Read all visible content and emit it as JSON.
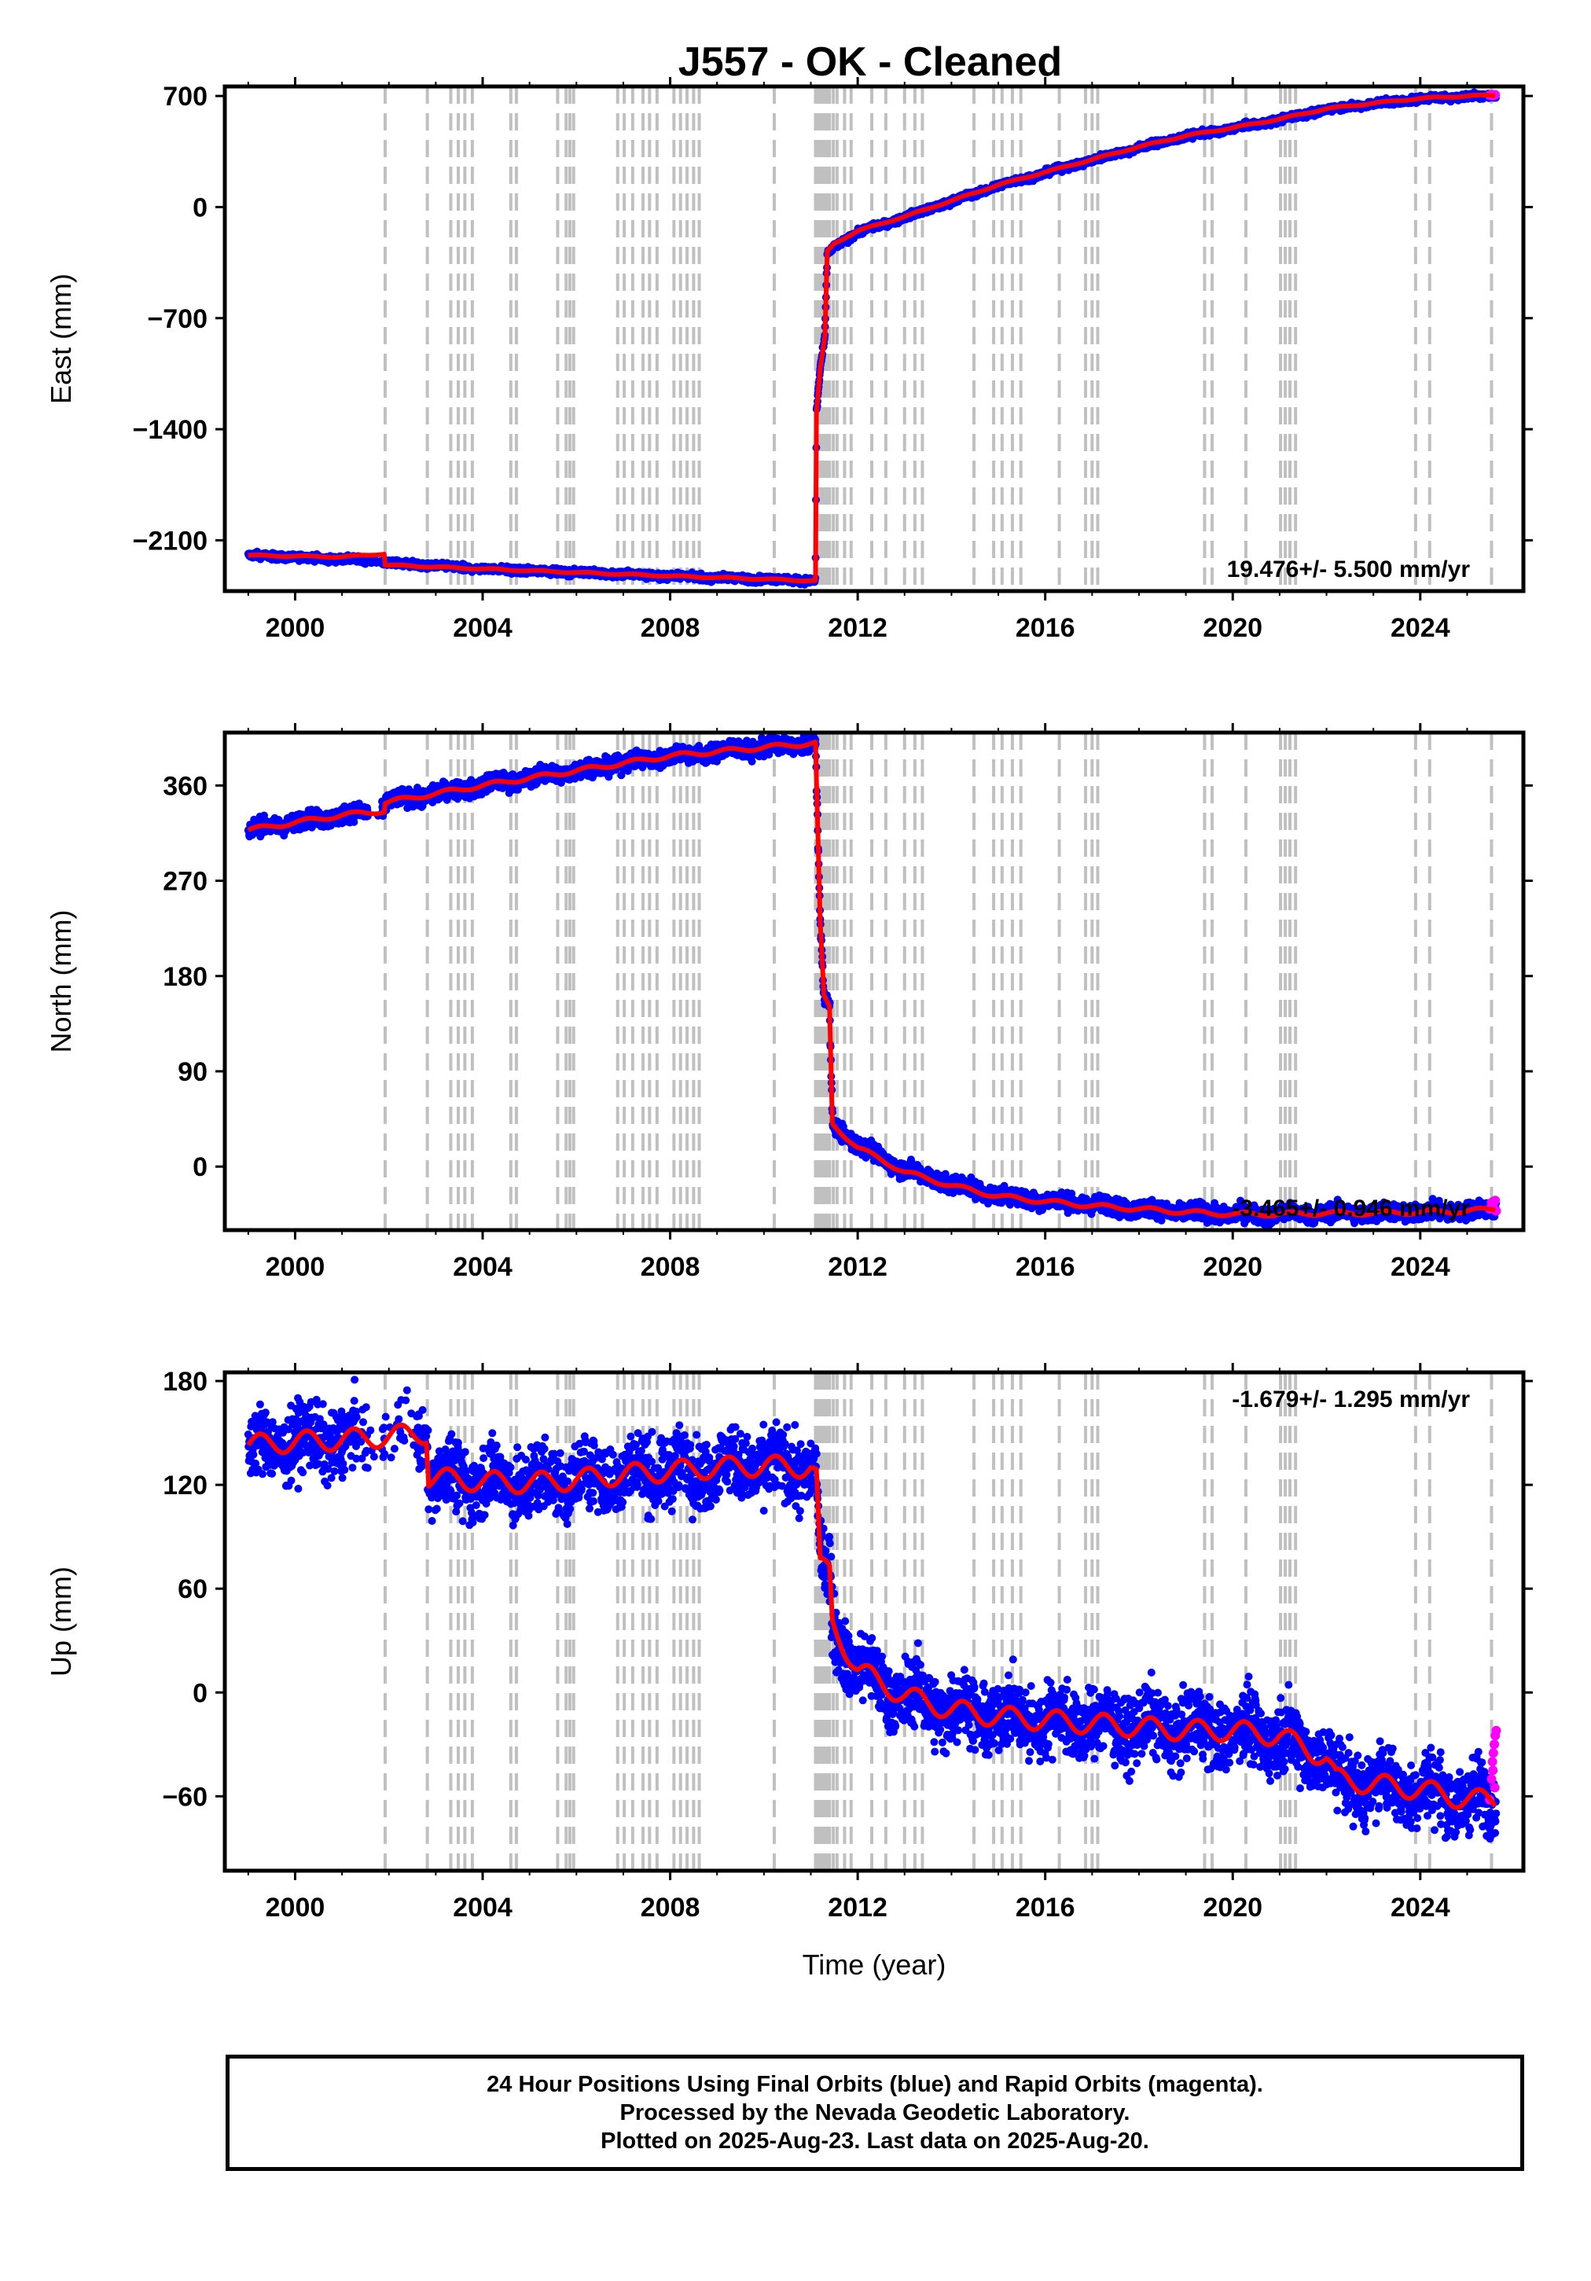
{
  "title": "J557  - OK - Cleaned",
  "xlabel": "Time (year)",
  "colors": {
    "final_orbits": "#0000ff",
    "rapid_orbits": "#ff00ff",
    "model": "#ff0000",
    "event_lines": "#c0c0c0"
  },
  "event_years": [
    2001.92,
    2002.82,
    2003.32,
    2003.48,
    2003.62,
    2003.78,
    2004.6,
    2004.72,
    2005.6,
    2005.78,
    2005.86,
    2005.94,
    2006.88,
    2007.02,
    2007.2,
    2007.42,
    2007.56,
    2007.72,
    2008.08,
    2008.22,
    2008.36,
    2008.5,
    2008.62,
    2010.22,
    2011.1,
    2011.16,
    2011.22,
    2011.28,
    2011.34,
    2011.4,
    2011.48,
    2011.56,
    2011.72,
    2011.86,
    2012.3,
    2012.6,
    2013.0,
    2013.22,
    2013.38,
    2014.48,
    2014.9,
    2015.08,
    2015.3,
    2015.48,
    2016.3,
    2016.86,
    2017.0,
    2017.12,
    2019.4,
    2019.56,
    2020.28,
    2021.02,
    2021.12,
    2021.22,
    2021.34,
    2023.9,
    2024.2,
    2025.52
  ],
  "chart_data": [
    {
      "type": "scatter",
      "name": "east",
      "ylabel": "East (mm)",
      "xlim": [
        1998.5,
        2026.2
      ],
      "ylim": [
        -2420,
        760
      ],
      "xticks": [
        2000,
        2004,
        2008,
        2012,
        2016,
        2020,
        2024
      ],
      "yticks": [
        -2100,
        -1400,
        -700,
        0,
        700
      ],
      "rate": "19.476+/- 5.500 mm/yr",
      "rate_position": "bottom-right",
      "model": [
        [
          1999.0,
          -2195
        ],
        [
          2001.0,
          -2205
        ],
        [
          2001.9,
          -2185
        ],
        [
          2001.92,
          -2255
        ],
        [
          2004.0,
          -2280
        ],
        [
          2008.0,
          -2325
        ],
        [
          2011.1,
          -2355
        ],
        [
          2011.12,
          -1300
        ],
        [
          2011.2,
          -1020
        ],
        [
          2011.3,
          -820
        ],
        [
          2011.35,
          -280
        ],
        [
          2011.5,
          -230
        ],
        [
          2012.0,
          -150
        ],
        [
          2013.0,
          -60
        ],
        [
          2014.0,
          40
        ],
        [
          2015.0,
          140
        ],
        [
          2016.0,
          220
        ],
        [
          2017.0,
          300
        ],
        [
          2018.0,
          380
        ],
        [
          2019.0,
          450
        ],
        [
          2020.0,
          500
        ],
        [
          2021.0,
          555
        ],
        [
          2022.0,
          620
        ],
        [
          2023.0,
          655
        ],
        [
          2024.0,
          685
        ],
        [
          2025.0,
          700
        ],
        [
          2025.6,
          705
        ]
      ],
      "anchors": [
        [
          1999.0,
          -2195
        ],
        [
          2001.5,
          -2225
        ],
        [
          2001.92,
          -2240
        ],
        [
          2004.0,
          -2280
        ],
        [
          2008.0,
          -2325
        ],
        [
          2011.1,
          -2355
        ],
        [
          2011.12,
          -1300
        ],
        [
          2011.2,
          -1020
        ],
        [
          2011.3,
          -820
        ],
        [
          2011.35,
          -300
        ],
        [
          2011.5,
          -250
        ],
        [
          2012.0,
          -160
        ],
        [
          2013.0,
          -65
        ],
        [
          2014.0,
          35
        ],
        [
          2015.0,
          135
        ],
        [
          2016.0,
          215
        ],
        [
          2017.0,
          295
        ],
        [
          2018.0,
          375
        ],
        [
          2019.0,
          445
        ],
        [
          2020.0,
          495
        ],
        [
          2021.0,
          550
        ],
        [
          2022.0,
          615
        ],
        [
          2023.0,
          652
        ],
        [
          2024.0,
          682
        ],
        [
          2025.0,
          698
        ],
        [
          2025.62,
          702
        ]
      ],
      "noise": 10,
      "seasonal": 4,
      "rapid": [
        [
          2025.48,
          705
        ],
        [
          2025.52,
          710
        ],
        [
          2025.56,
          702
        ],
        [
          2025.6,
          708
        ]
      ]
    },
    {
      "type": "scatter",
      "name": "north",
      "ylabel": "North (mm)",
      "xlim": [
        1998.5,
        2026.2
      ],
      "ylim": [
        -60,
        410
      ],
      "xticks": [
        2000,
        2004,
        2008,
        2012,
        2016,
        2020,
        2024
      ],
      "yticks": [
        0,
        90,
        180,
        270,
        360
      ],
      "rate": "-3.465+/- 0.946 mm/yr",
      "rate_position": "bottom-right",
      "model": [
        [
          1999.0,
          318
        ],
        [
          2000.0,
          325
        ],
        [
          2001.0,
          332
        ],
        [
          2001.9,
          336
        ],
        [
          2001.92,
          344
        ],
        [
          2004.0,
          360
        ],
        [
          2006.0,
          374
        ],
        [
          2008.0,
          388
        ],
        [
          2010.0,
          396
        ],
        [
          2011.1,
          400
        ],
        [
          2011.12,
          365
        ],
        [
          2011.2,
          230
        ],
        [
          2011.28,
          160
        ],
        [
          2011.4,
          150
        ],
        [
          2011.46,
          40
        ],
        [
          2012.0,
          18
        ],
        [
          2013.0,
          -5
        ],
        [
          2014.0,
          -18
        ],
        [
          2015.0,
          -28
        ],
        [
          2016.0,
          -33
        ],
        [
          2017.0,
          -37
        ],
        [
          2018.0,
          -40
        ],
        [
          2019.0,
          -43
        ],
        [
          2020.0,
          -45
        ],
        [
          2021.0,
          -45
        ],
        [
          2022.0,
          -44
        ],
        [
          2023.0,
          -44
        ],
        [
          2024.0,
          -43
        ],
        [
          2025.0,
          -42
        ],
        [
          2025.6,
          -40
        ]
      ],
      "anchors": [
        [
          1999.0,
          318
        ],
        [
          2000.0,
          325
        ],
        [
          2001.0,
          332
        ],
        [
          2001.9,
          336
        ],
        [
          2001.92,
          344
        ],
        [
          2004.0,
          360
        ],
        [
          2006.0,
          374
        ],
        [
          2008.0,
          388
        ],
        [
          2010.0,
          396
        ],
        [
          2011.1,
          400
        ],
        [
          2011.12,
          365
        ],
        [
          2011.2,
          230
        ],
        [
          2011.28,
          160
        ],
        [
          2011.4,
          150
        ],
        [
          2011.46,
          42
        ],
        [
          2012.0,
          20
        ],
        [
          2013.0,
          -3
        ],
        [
          2014.0,
          -16
        ],
        [
          2015.0,
          -27
        ],
        [
          2016.0,
          -32
        ],
        [
          2017.0,
          -36
        ],
        [
          2018.0,
          -40
        ],
        [
          2019.0,
          -43
        ],
        [
          2020.0,
          -45
        ],
        [
          2021.0,
          -45
        ],
        [
          2022.0,
          -44
        ],
        [
          2023.0,
          -44
        ],
        [
          2024.0,
          -43
        ],
        [
          2025.0,
          -42
        ],
        [
          2025.62,
          -40
        ]
      ],
      "noise": 4,
      "seasonal": 2,
      "rapid": [
        [
          2025.48,
          -40
        ],
        [
          2025.52,
          -34
        ],
        [
          2025.56,
          -38
        ],
        [
          2025.6,
          -32
        ],
        [
          2025.62,
          -42
        ]
      ]
    },
    {
      "type": "scatter",
      "name": "up",
      "ylabel": "Up (mm)",
      "xlim": [
        1998.5,
        2026.2
      ],
      "ylim": [
        -103,
        185
      ],
      "xticks": [
        2000,
        2004,
        2008,
        2012,
        2016,
        2020,
        2024
      ],
      "yticks": [
        -60,
        0,
        60,
        120,
        180
      ],
      "rate": "-1.679+/- 1.295 mm/yr",
      "rate_position": "top-right",
      "model": [
        [
          1999.0,
          143
        ],
        [
          2000.0,
          145
        ],
        [
          2001.0,
          146
        ],
        [
          2002.0,
          148
        ],
        [
          2002.8,
          150
        ],
        [
          2002.85,
          124
        ],
        [
          2004.0,
          122
        ],
        [
          2005.0,
          121
        ],
        [
          2006.0,
          123
        ],
        [
          2007.0,
          126
        ],
        [
          2008.0,
          128
        ],
        [
          2009.0,
          130
        ],
        [
          2010.0,
          131
        ],
        [
          2011.0,
          130
        ],
        [
          2011.12,
          125
        ],
        [
          2011.2,
          72
        ],
        [
          2011.4,
          70
        ],
        [
          2011.46,
          40
        ],
        [
          2012.0,
          13
        ],
        [
          2013.0,
          -2
        ],
        [
          2014.0,
          -10
        ],
        [
          2015.0,
          -14
        ],
        [
          2016.0,
          -16
        ],
        [
          2017.0,
          -18
        ],
        [
          2018.0,
          -20
        ],
        [
          2019.0,
          -22
        ],
        [
          2020.0,
          -22
        ],
        [
          2021.0,
          -25
        ],
        [
          2022.0,
          -38
        ],
        [
          2022.2,
          -50
        ],
        [
          2023.0,
          -53
        ],
        [
          2024.0,
          -56
        ],
        [
          2025.0,
          -62
        ],
        [
          2025.6,
          -62
        ]
      ],
      "anchors": [
        [
          1999.0,
          140
        ],
        [
          2000.0,
          145
        ],
        [
          2001.0,
          146
        ],
        [
          2002.0,
          148
        ],
        [
          2002.8,
          150
        ],
        [
          2002.85,
          124
        ],
        [
          2004.0,
          122
        ],
        [
          2005.0,
          121
        ],
        [
          2006.0,
          123
        ],
        [
          2007.0,
          126
        ],
        [
          2008.0,
          128
        ],
        [
          2009.0,
          130
        ],
        [
          2010.0,
          131
        ],
        [
          2011.0,
          130
        ],
        [
          2011.12,
          125
        ],
        [
          2011.2,
          72
        ],
        [
          2011.4,
          70
        ],
        [
          2011.46,
          40
        ],
        [
          2012.0,
          13
        ],
        [
          2013.0,
          -2
        ],
        [
          2014.0,
          -10
        ],
        [
          2015.0,
          -14
        ],
        [
          2016.0,
          -16
        ],
        [
          2017.0,
          -18
        ],
        [
          2018.0,
          -20
        ],
        [
          2019.0,
          -22
        ],
        [
          2020.0,
          -22
        ],
        [
          2021.0,
          -25
        ],
        [
          2022.0,
          -38
        ],
        [
          2022.2,
          -50
        ],
        [
          2023.0,
          -53
        ],
        [
          2024.0,
          -56
        ],
        [
          2025.0,
          -62
        ],
        [
          2025.62,
          -62
        ]
      ],
      "noise": 10,
      "seasonal": 6,
      "rapid": [
        [
          2025.48,
          -62
        ],
        [
          2025.52,
          -50
        ],
        [
          2025.54,
          -40
        ],
        [
          2025.56,
          -35
        ],
        [
          2025.58,
          -30
        ],
        [
          2025.6,
          -25
        ],
        [
          2025.62,
          -22
        ],
        [
          2025.55,
          -45
        ],
        [
          2025.59,
          -55
        ]
      ]
    }
  ],
  "footer": {
    "line1": "24 Hour Positions Using Final Orbits (blue) and Rapid Orbits (magenta).",
    "line2": "Processed by the Nevada Geodetic Laboratory.",
    "line3": "Plotted on 2025-Aug-23. Last data on 2025-Aug-20."
  }
}
